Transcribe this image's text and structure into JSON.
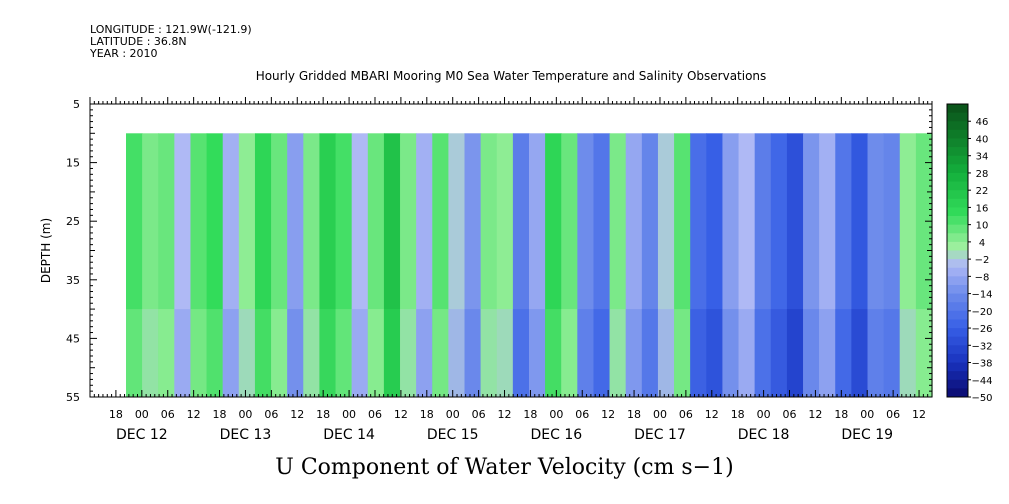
{
  "header": {
    "longitude": "LONGITUDE : 121.9W(-121.9)",
    "latitude": "LATITUDE : 36.8N",
    "year": "YEAR : 2010"
  },
  "chart_data": {
    "type": "heatmap",
    "title": "Hourly Gridded MBARI Mooring M0 Sea Water Temperature and Salinity Observations",
    "main_title": "U Component of Water Velocity (cm s−1)",
    "ylabel": "DEPTH (m)",
    "ylim": [
      5,
      55
    ],
    "y_inverted": true,
    "y_ticks": [
      "5",
      "15",
      "25",
      "35",
      "45",
      "55"
    ],
    "x_hour_ticks": [
      "18",
      "00",
      "06",
      "12",
      "18",
      "00",
      "06",
      "12",
      "18",
      "00",
      "06",
      "12",
      "18",
      "00",
      "06",
      "12",
      "18",
      "00",
      "06",
      "12",
      "18",
      "00",
      "06",
      "12",
      "18",
      "00",
      "06",
      "12",
      "18",
      "00",
      "06",
      "12"
    ],
    "x_day_labels": [
      "DEC 12",
      "DEC 13",
      "DEC 14",
      "DEC 15",
      "DEC 16",
      "DEC 17",
      "DEC 18",
      "DEC 19"
    ],
    "x_range": [
      "DEC 11 12:00",
      "DEC 19 15:00"
    ],
    "data_depth_range": [
      10,
      55
    ],
    "colorbar_levels": [
      "46",
      "40",
      "34",
      "28",
      "22",
      "16",
      "10",
      "4",
      "−2",
      "−8",
      "−14",
      "−20",
      "−26",
      "−32",
      "−38",
      "−44",
      "−50"
    ],
    "colorbar_range": [
      -50,
      52
    ],
    "colorbar_step": 3,
    "band_values": [
      12,
      6,
      8,
      -4,
      10,
      14,
      -6,
      4,
      16,
      8,
      -10,
      6,
      18,
      12,
      -4,
      8,
      22,
      6,
      -6,
      10,
      -2,
      -12,
      6,
      4,
      -18,
      -8,
      16,
      8,
      -14,
      -20,
      6,
      -8,
      -16,
      -2,
      10,
      -22,
      -26,
      -10,
      -4,
      -18,
      -24,
      -30,
      -12,
      -6,
      -20,
      -28,
      -14,
      -16,
      4,
      8
    ]
  }
}
